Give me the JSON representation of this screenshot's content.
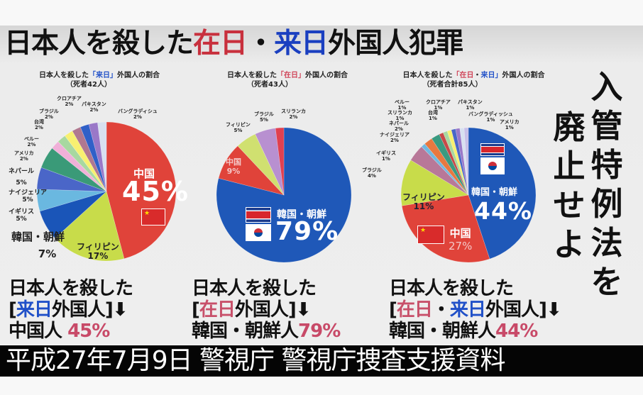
{
  "headline": {
    "part1": "日本人を殺した",
    "zainichi": "在日",
    "dot": "・",
    "rainichi": "来日",
    "part2": "外国人犯罪"
  },
  "vertical_slogan": {
    "col_right": [
      "入",
      "管",
      "特",
      "例",
      "法",
      "を"
    ],
    "col_left": [
      "廃",
      "止",
      "せ",
      "よ"
    ]
  },
  "charts": [
    {
      "subtitle_pre": "日本人を殺した",
      "subtitle_hl": "「来日」",
      "subtitle_post": "外国人の割合",
      "count": "（死者42人）",
      "main_label": "中国",
      "main_pct": "45%",
      "caption_line1": "日本人を殺した",
      "caption_open": "[",
      "caption_hl": "来日",
      "caption_rest": "外国人]",
      "caption_arrow": "⬇",
      "caption_subject": "中国人",
      "caption_pct": "45%"
    },
    {
      "subtitle_pre": "日本人を殺した",
      "subtitle_hl": "「在日」",
      "subtitle_post": "外国人の割合",
      "count": "（死者43人）",
      "main_label": "韓国・朝鮮",
      "main_pct": "79%",
      "caption_line1": "日本人を殺した",
      "caption_open": "[",
      "caption_hl": "在日",
      "caption_rest": "外国人]",
      "caption_arrow": "⬇",
      "caption_subject": "韓国・朝鮮人",
      "caption_pct": "79%"
    },
    {
      "subtitle_pre": "日本人を殺した",
      "subtitle_hl_red": "「在日",
      "subtitle_hl_dot": "・",
      "subtitle_hl_blue": "来日」",
      "subtitle_post": "外国人の割合",
      "count": "（死者合計85人）",
      "main_label": "韓国・朝鮮",
      "main_pct": "44%",
      "second_label": "中国",
      "second_pct": "27%",
      "caption_line1": "日本人を殺した",
      "caption_open": "[",
      "caption_hl_red": "在日",
      "caption_hl_dot": "・",
      "caption_hl_blue": "来日",
      "caption_rest": "外国人]",
      "caption_arrow": "⬇",
      "caption_subject": "韓国・朝鮮人",
      "caption_pct": "44%"
    }
  ],
  "footer": {
    "text": "平成27年7月9日 警視庁 警視庁捜査支援資料"
  },
  "chart_data": [
    {
      "type": "pie",
      "title": "日本人を殺した「来日」外国人の割合（死者42人）",
      "categories": [
        "中国",
        "フィリピン",
        "韓国・朝鮮",
        "イギリス",
        "ナイジェリア",
        "ネパール",
        "アメリカ",
        "ペルー",
        "台湾",
        "ブラジル",
        "クロアチア",
        "パキスタン",
        "バングラディシュ"
      ],
      "values": [
        45,
        17,
        7,
        5,
        5,
        5,
        2,
        2,
        2,
        2,
        2,
        2,
        2
      ],
      "colors": [
        "#e0433a",
        "#c8dc4a",
        "#1a55b8",
        "#6ab8e0",
        "#4a66c8",
        "#3a9a78",
        "#f0b0d8",
        "#a8d8a0",
        "#f8f070",
        "#b07890",
        "#3060c8",
        "#9a78c8",
        "#d8e0f0"
      ],
      "unit": "%"
    },
    {
      "type": "pie",
      "title": "日本人を殺した「在日」外国人の割合（死者43人）",
      "categories": [
        "韓国・朝鮮",
        "中国",
        "フィリピン",
        "ブラジル",
        "スリランカ"
      ],
      "values": [
        79,
        9,
        5,
        5,
        2
      ],
      "colors": [
        "#1f58b8",
        "#e0433a",
        "#d0e070",
        "#b890d0",
        "#e04050"
      ],
      "unit": "%"
    },
    {
      "type": "pie",
      "title": "日本人を殺した「在日・来日」外国人の割合（死者合計85人）",
      "categories": [
        "韓国・朝鮮",
        "中国",
        "フィリピン",
        "ブラジル",
        "イギリス",
        "ナイジェリア",
        "ネパール",
        "スリランカ",
        "ペルー",
        "台湾",
        "クロアチア",
        "パキスタン",
        "バングラディッシュ",
        "アメリカ"
      ],
      "values": [
        44,
        27,
        11,
        4,
        1,
        2,
        2,
        1,
        1,
        1,
        1,
        1,
        1,
        1
      ],
      "colors": [
        "#1f58b8",
        "#e0433a",
        "#c8dc4a",
        "#b87898",
        "#70b8e0",
        "#e87840",
        "#3a9a80",
        "#c84848",
        "#a8d8a0",
        "#f8f070",
        "#4a66c8",
        "#9a78c8",
        "#d8e0f0",
        "#c8c0e8"
      ],
      "unit": "%"
    }
  ],
  "pie1_labels": [
    {
      "name": "クロアチア",
      "pct": "2%"
    },
    {
      "name": "パキスタン",
      "pct": "2%"
    },
    {
      "name": "バングラディシュ",
      "pct": "2%"
    },
    {
      "name": "ブラジル",
      "pct": "2%"
    },
    {
      "name": "台湾",
      "pct": "2%"
    },
    {
      "name": "ペルー",
      "pct": "2%"
    },
    {
      "name": "アメリカ",
      "pct": "2%"
    },
    {
      "name": "ネパール",
      "pct": "5%"
    },
    {
      "name": "ナイジェリア",
      "pct": "5%"
    },
    {
      "name": "イギリス",
      "pct": "5%"
    },
    {
      "name": "韓国・朝鮮",
      "pct": "7%"
    },
    {
      "name": "フィリピン",
      "pct": "17%"
    }
  ],
  "pie2_labels": [
    {
      "name": "ブラジル",
      "pct": "5%"
    },
    {
      "name": "スリランカ",
      "pct": "2%"
    },
    {
      "name": "フィリピン",
      "pct": "5%"
    },
    {
      "name": "中国",
      "pct": "9%"
    }
  ],
  "pie3_labels": [
    {
      "name": "ペルー",
      "pct": "1%"
    },
    {
      "name": "クロアチア",
      "pct": "1%"
    },
    {
      "name": "パキスタン",
      "pct": "1%"
    },
    {
      "name": "スリランカ",
      "pct": "1%"
    },
    {
      "name": "台湾",
      "pct": "1%"
    },
    {
      "name": "バングラディッシュ",
      "pct": "1%"
    },
    {
      "name": "ネパール",
      "pct": "2%"
    },
    {
      "name": "アメリカ",
      "pct": "1%"
    },
    {
      "name": "ナイジェリア",
      "pct": "2%"
    },
    {
      "name": "イギリス",
      "pct": "1%"
    },
    {
      "name": "ブラジル",
      "pct": "4%"
    },
    {
      "name": "フィリピン",
      "pct": "11%"
    }
  ]
}
